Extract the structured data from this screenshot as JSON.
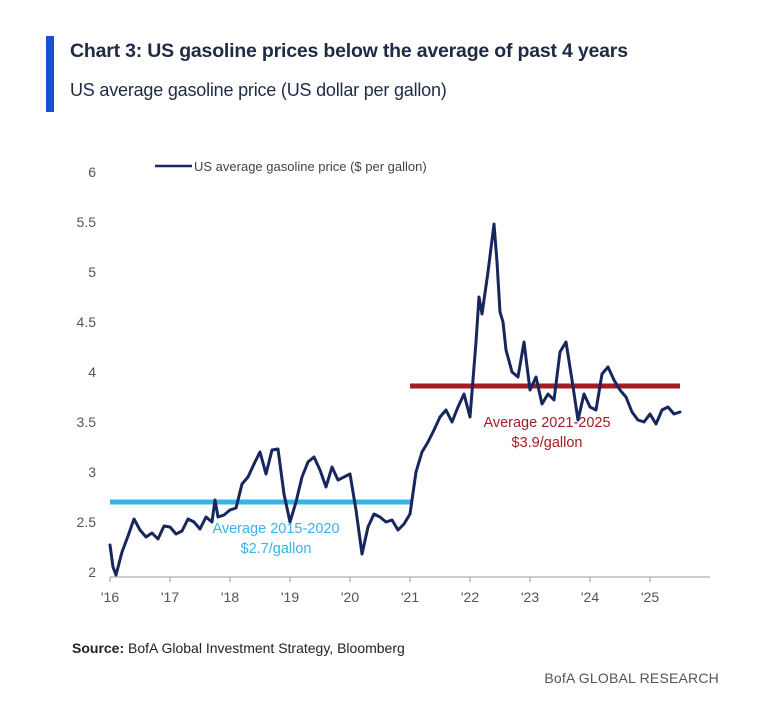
{
  "title": "Chart 3: US gasoline prices below the average of past 4 years",
  "subtitle": "US average gasoline price (US dollar per gallon)",
  "source_label": "Source:",
  "source_text": "BofA Global Investment Strategy, Bloomberg",
  "brand": "BofA GLOBAL RESEARCH",
  "colors": {
    "accent": "#1a4fd6",
    "series": "#17265c",
    "avg_2015_2020": "#35b3ea",
    "avg_2021_2025": "#a51c22",
    "axis_text": "#555555"
  },
  "chart_data": {
    "type": "line",
    "ylim": [
      2,
      6
    ],
    "yticks": [
      2,
      2.5,
      3,
      3.5,
      4,
      4.5,
      5,
      5.5,
      6
    ],
    "ytick_labels": [
      "2",
      "2.5",
      "3",
      "3.5",
      "4",
      "4.5",
      "5",
      "5.5",
      "6"
    ],
    "xlim": [
      2016,
      2026
    ],
    "xticks": [
      2016,
      2017,
      2018,
      2019,
      2020,
      2021,
      2022,
      2023,
      2024,
      2025
    ],
    "xtick_labels": [
      "'16",
      "'17",
      "'18",
      "'19",
      "'20",
      "'21",
      "'22",
      "'23",
      "'24",
      "'25"
    ],
    "legend_position": "top-left",
    "grid": false,
    "series": [
      {
        "name": "US average gasoline price ($ per gallon)",
        "x": [
          2016.0,
          2016.05,
          2016.1,
          2016.2,
          2016.3,
          2016.4,
          2016.5,
          2016.6,
          2016.7,
          2016.8,
          2016.9,
          2017.0,
          2017.1,
          2017.2,
          2017.3,
          2017.4,
          2017.5,
          2017.6,
          2017.7,
          2017.75,
          2017.8,
          2017.9,
          2018.0,
          2018.1,
          2018.2,
          2018.3,
          2018.4,
          2018.5,
          2018.6,
          2018.7,
          2018.8,
          2018.9,
          2019.0,
          2019.1,
          2019.2,
          2019.3,
          2019.4,
          2019.5,
          2019.6,
          2019.7,
          2019.8,
          2019.9,
          2020.0,
          2020.1,
          2020.2,
          2020.3,
          2020.4,
          2020.5,
          2020.6,
          2020.7,
          2020.8,
          2020.9,
          2021.0,
          2021.1,
          2021.2,
          2021.3,
          2021.4,
          2021.5,
          2021.6,
          2021.7,
          2021.8,
          2021.9,
          2022.0,
          2022.1,
          2022.15,
          2022.2,
          2022.3,
          2022.4,
          2022.45,
          2022.5,
          2022.55,
          2022.6,
          2022.7,
          2022.8,
          2022.9,
          2023.0,
          2023.1,
          2023.2,
          2023.3,
          2023.4,
          2023.5,
          2023.6,
          2023.7,
          2023.8,
          2023.9,
          2024.0,
          2024.1,
          2024.2,
          2024.3,
          2024.4,
          2024.5,
          2024.6,
          2024.7,
          2024.8,
          2024.9,
          2025.0,
          2025.1,
          2025.2,
          2025.3,
          2025.4,
          2025.5
        ],
        "values": [
          2.27,
          2.05,
          1.97,
          2.2,
          2.36,
          2.53,
          2.42,
          2.35,
          2.39,
          2.33,
          2.46,
          2.45,
          2.38,
          2.41,
          2.53,
          2.5,
          2.43,
          2.55,
          2.5,
          2.72,
          2.55,
          2.57,
          2.62,
          2.64,
          2.88,
          2.95,
          3.08,
          3.2,
          2.98,
          3.22,
          3.23,
          2.78,
          2.5,
          2.7,
          2.95,
          3.1,
          3.15,
          3.02,
          2.85,
          3.05,
          2.92,
          2.95,
          2.98,
          2.62,
          2.18,
          2.45,
          2.58,
          2.55,
          2.5,
          2.52,
          2.42,
          2.48,
          2.58,
          3.0,
          3.2,
          3.3,
          3.42,
          3.55,
          3.62,
          3.5,
          3.65,
          3.78,
          3.55,
          4.3,
          4.75,
          4.58,
          5.0,
          5.48,
          5.1,
          4.6,
          4.5,
          4.22,
          4.0,
          3.95,
          4.3,
          3.82,
          3.95,
          3.68,
          3.78,
          3.72,
          4.2,
          4.3,
          3.92,
          3.52,
          3.78,
          3.65,
          3.62,
          3.98,
          4.05,
          3.92,
          3.82,
          3.75,
          3.6,
          3.52,
          3.5,
          3.58,
          3.48,
          3.62,
          3.65,
          3.58,
          3.6
        ]
      }
    ],
    "reference_lines": [
      {
        "label": "Average 2015-2020",
        "value_label": "$2.7/gallon",
        "value": 2.7,
        "x_start": 2016.0,
        "x_end": 2021.05
      },
      {
        "label": "Average 2021-2025",
        "value_label": "$3.9/gallon",
        "value": 3.86,
        "x_start": 2021.0,
        "x_end": 2025.5
      }
    ]
  }
}
